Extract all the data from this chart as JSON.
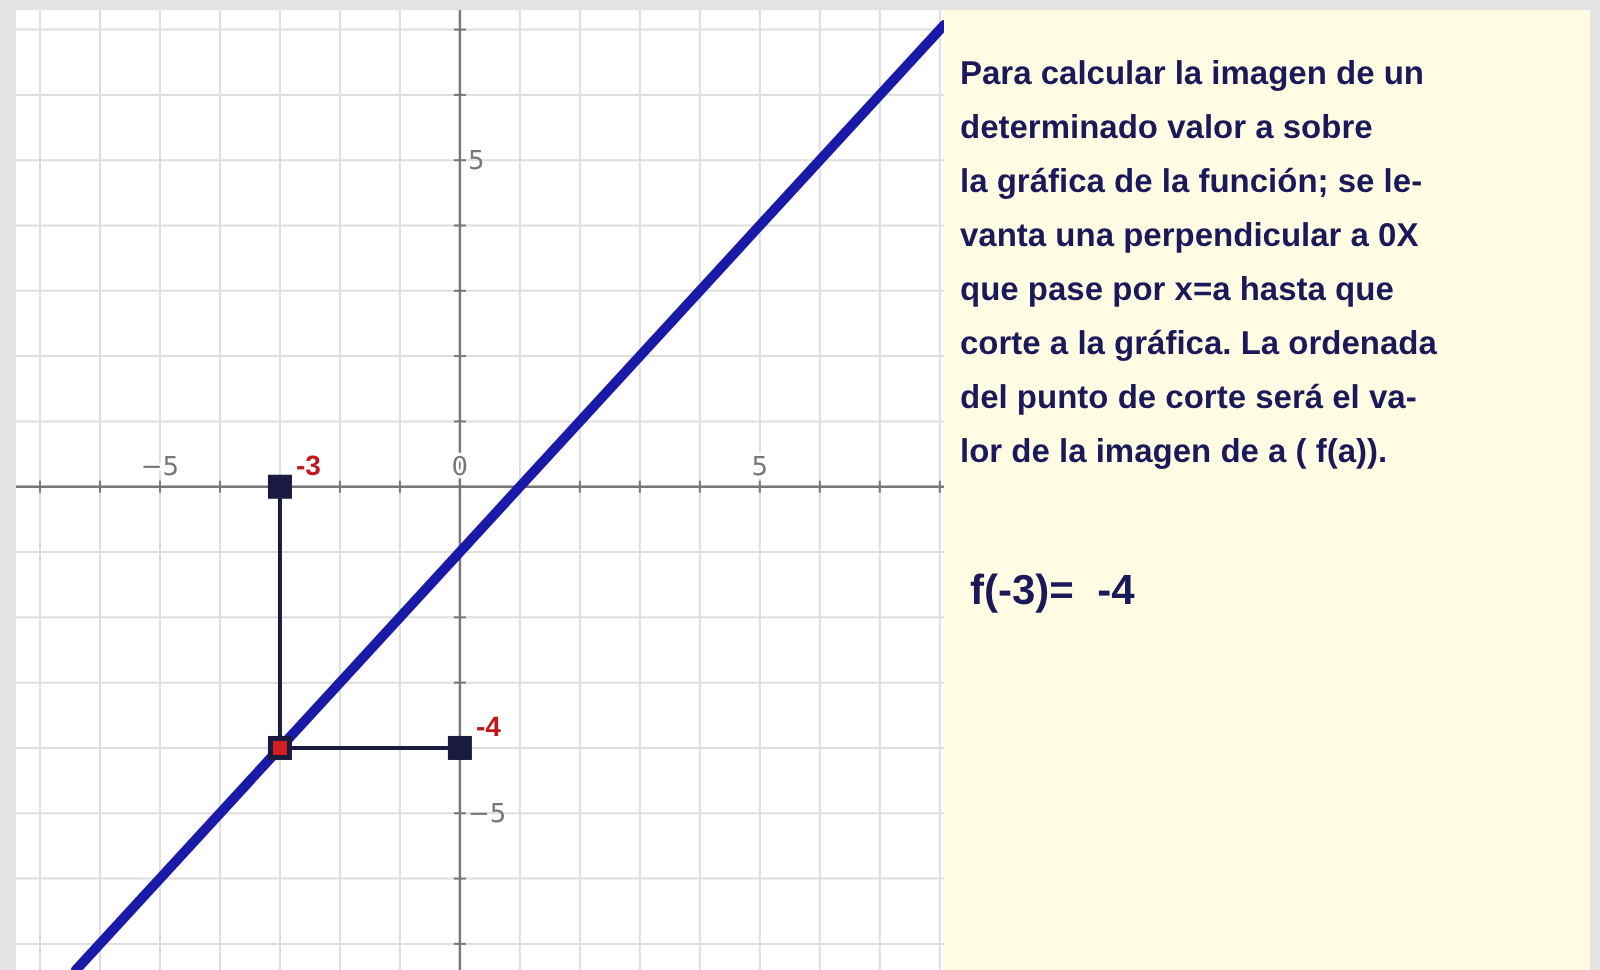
{
  "chart_data": {
    "type": "line",
    "xlim": [
      -7.4,
      8.07
    ],
    "ylim": [
      -7.4,
      7.3
    ],
    "xticks": [
      {
        "value": -7,
        "label": null
      },
      {
        "value": -6,
        "label": null
      },
      {
        "value": -5,
        "label": "−5"
      },
      {
        "value": -4,
        "label": null
      },
      {
        "value": -3,
        "label": null
      },
      {
        "value": -2,
        "label": null
      },
      {
        "value": -1,
        "label": null
      },
      {
        "value": 0,
        "label": "0"
      },
      {
        "value": 1,
        "label": null
      },
      {
        "value": 2,
        "label": null
      },
      {
        "value": 3,
        "label": null
      },
      {
        "value": 4,
        "label": null
      },
      {
        "value": 5,
        "label": "5"
      },
      {
        "value": 6,
        "label": null
      },
      {
        "value": 7,
        "label": null
      },
      {
        "value": 8,
        "label": null
      }
    ],
    "yticks": [
      {
        "value": -7,
        "label": null
      },
      {
        "value": -6,
        "label": null
      },
      {
        "value": -5,
        "label": "−5"
      },
      {
        "value": -4,
        "label": null
      },
      {
        "value": -3,
        "label": null
      },
      {
        "value": -2,
        "label": null
      },
      {
        "value": -1,
        "label": null
      },
      {
        "value": 0,
        "label": null
      },
      {
        "value": 1,
        "label": null
      },
      {
        "value": 2,
        "label": null
      },
      {
        "value": 3,
        "label": null
      },
      {
        "value": 4,
        "label": null
      },
      {
        "value": 5,
        "label": "5"
      },
      {
        "value": 6,
        "label": null
      },
      {
        "value": 7,
        "label": null
      }
    ],
    "grid": true,
    "series": [
      {
        "type": "line",
        "color": "#1a1aa8",
        "x": [
          -6.4,
          8.07
        ],
        "values": [
          -7.4,
          7.07
        ]
      },
      {
        "type": "line",
        "color": "#1a1a40",
        "x": [
          -3,
          -3,
          0
        ],
        "values": [
          0,
          -4,
          -4
        ],
        "marker": "square"
      },
      {
        "type": "scatter",
        "color": "#d42020",
        "x": [
          -3
        ],
        "values": [
          -4
        ],
        "marker": "square"
      }
    ],
    "annotations": [
      {
        "text": "-3",
        "x": -3,
        "y": 0
      },
      {
        "text": "-4",
        "x": 0,
        "y": -4
      },
      "Para calcular la imagen de un\ndeterminado valor  a sobre\nla gráfica de la función; se le-\nvanta una  perpendicular a 0X\nque pase por x=a hasta que\ncorte a la gráfica. La ordenada\ndel punto de corte será el va-\nlor de la imagen de a ( f(a)).",
      "f(-3)=  -4"
    ]
  }
}
